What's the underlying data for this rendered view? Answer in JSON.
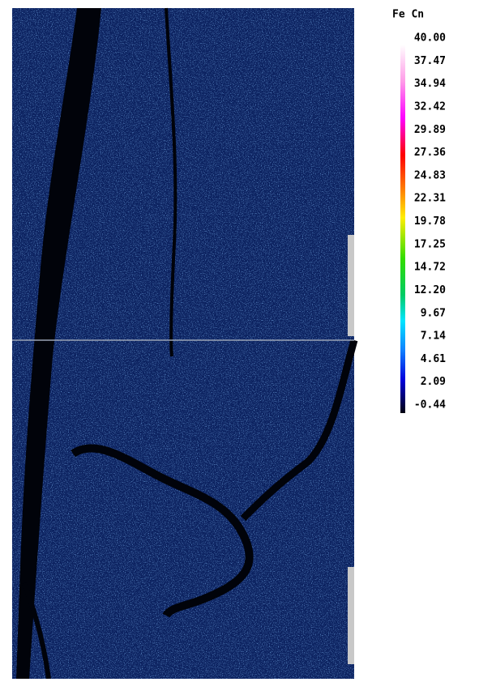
{
  "legend": {
    "title": "Fe  Cn",
    "labels": [
      "40.00",
      "37.47",
      "34.94",
      "32.42",
      "29.89",
      "27.36",
      "24.83",
      "22.31",
      "19.78",
      "17.25",
      "14.72",
      "12.20",
      "9.67",
      "7.14",
      "4.61",
      "2.09",
      "-0.44"
    ]
  }
}
